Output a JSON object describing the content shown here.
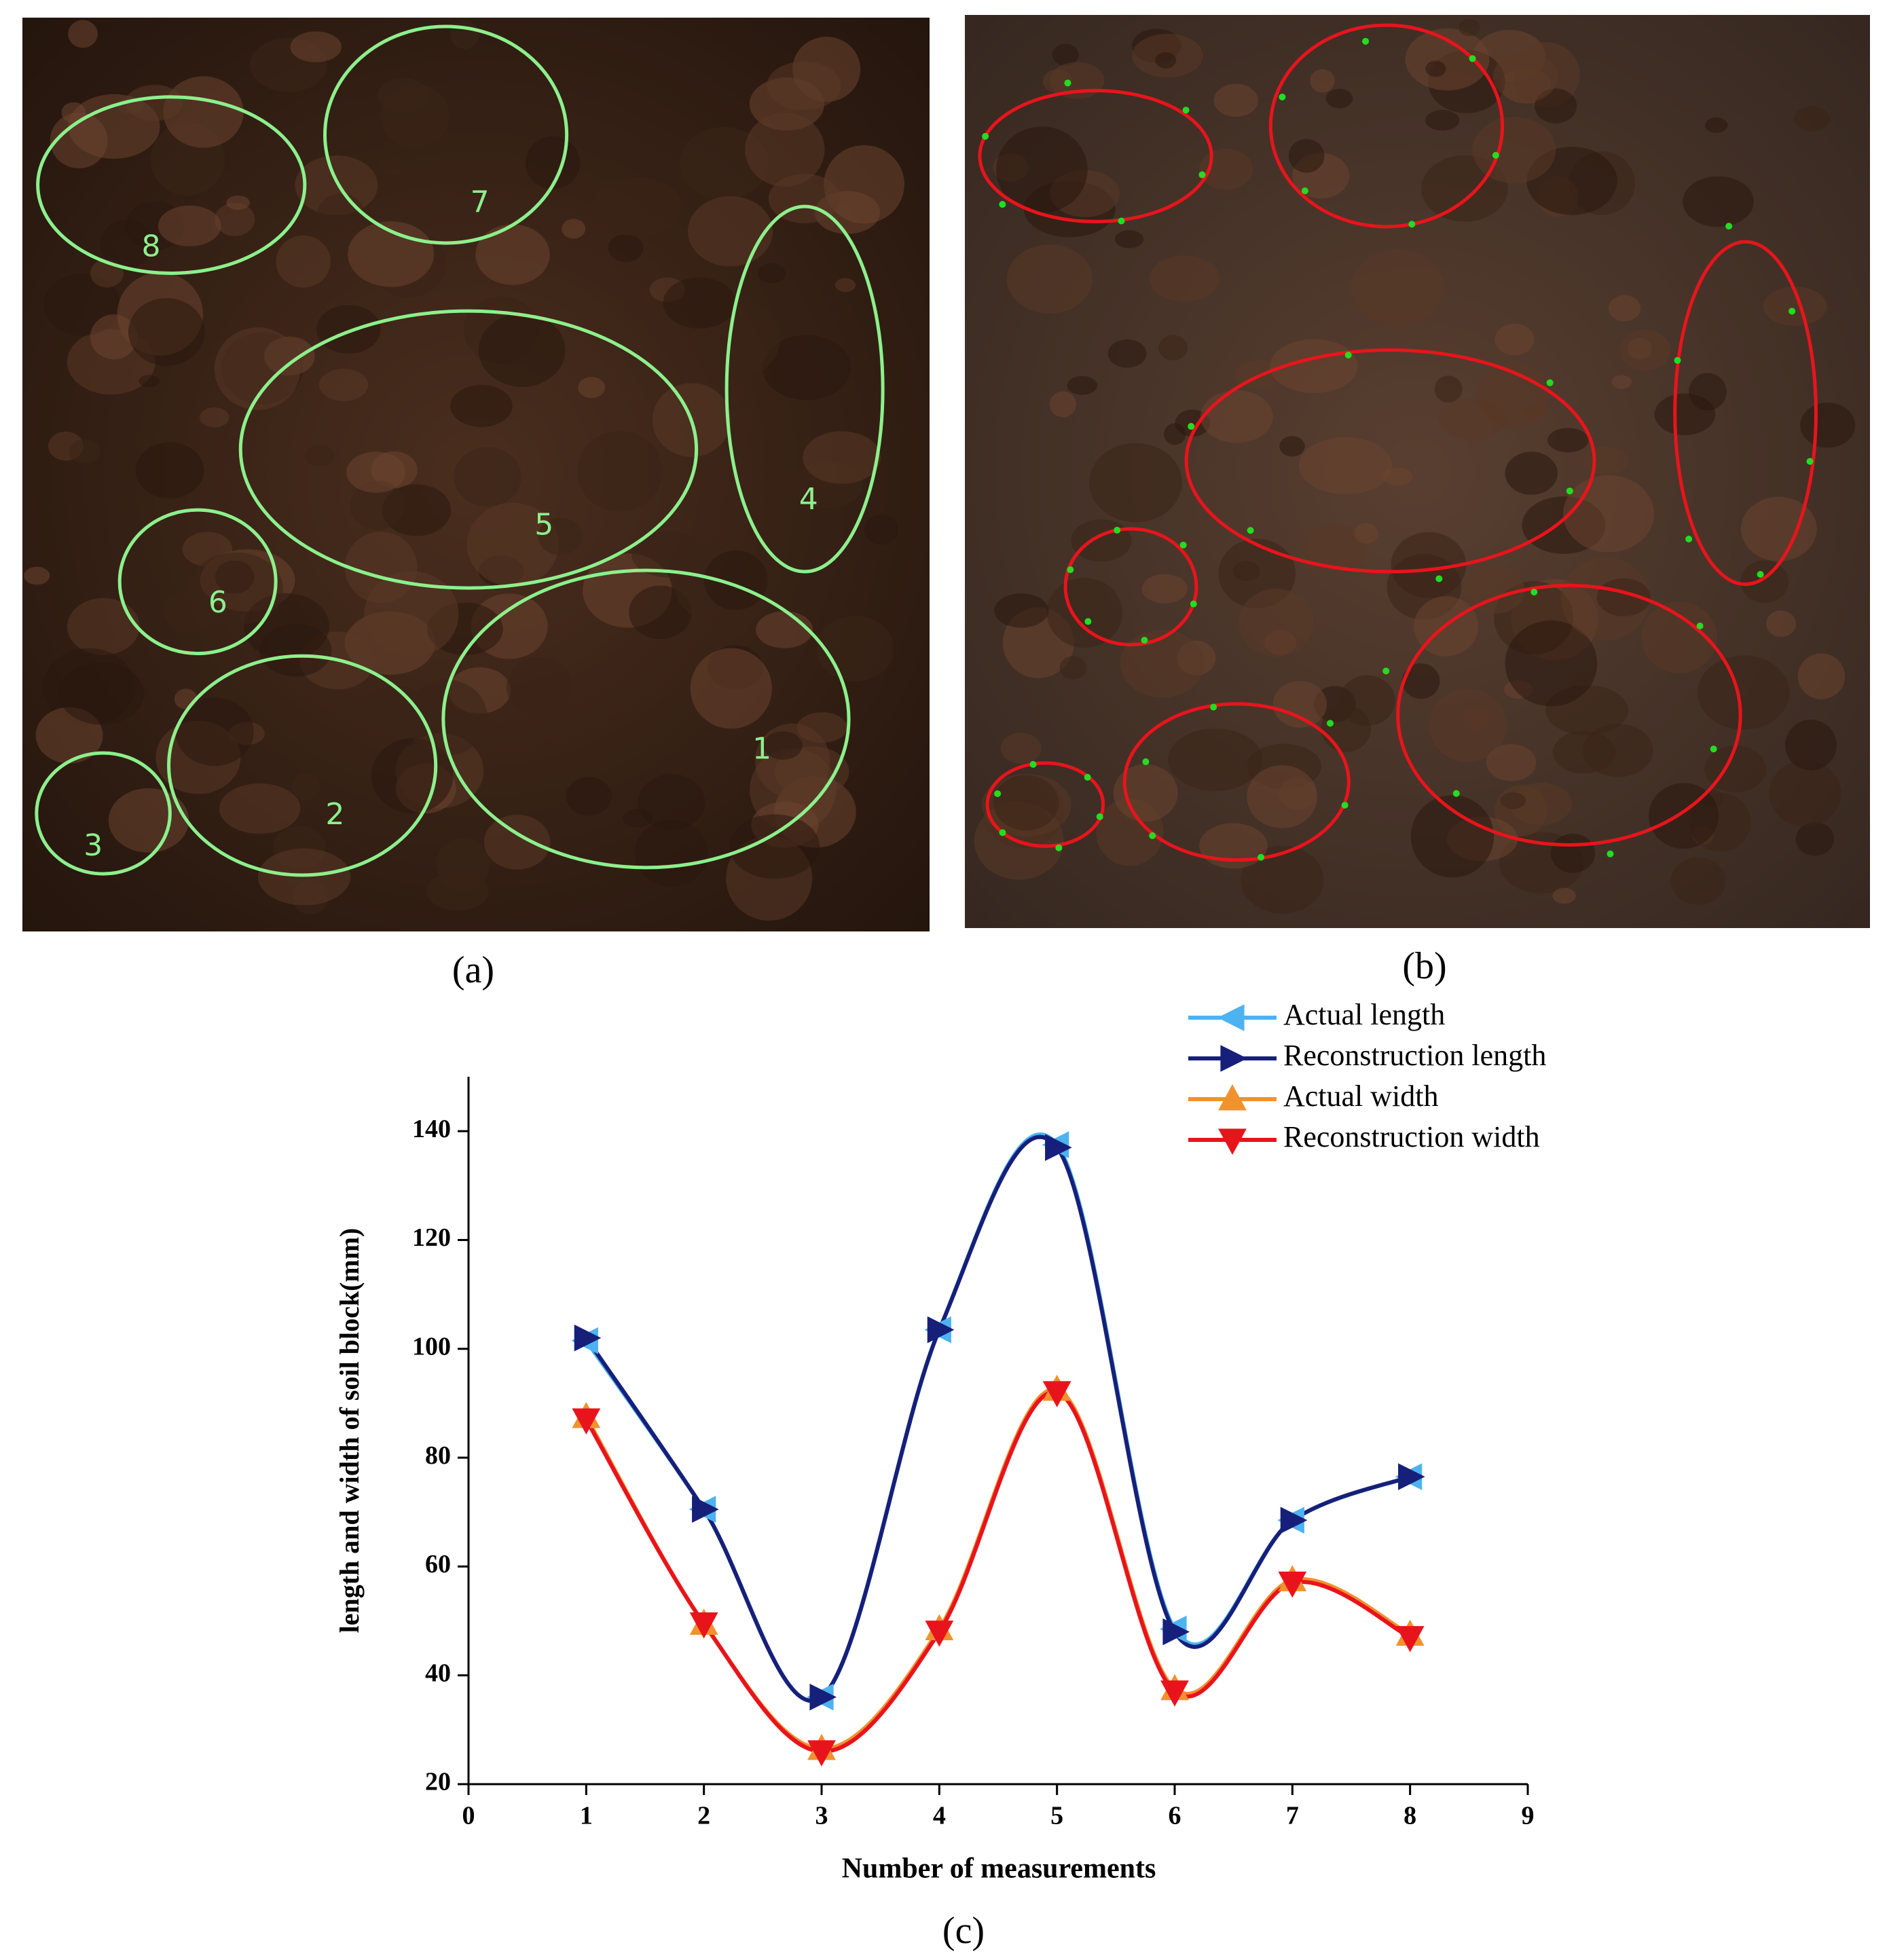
{
  "panels": {
    "a": {
      "label": "(a)",
      "ellipse_labels": [
        "1",
        "2",
        "3",
        "4",
        "5",
        "6",
        "7",
        "8"
      ]
    },
    "b": {
      "label": "(b)"
    },
    "c": {
      "label": "(c)"
    }
  },
  "chart_data": {
    "type": "line",
    "smooth": true,
    "x_label": "Number of measurements",
    "y_label": "length and width of soil block(mm)",
    "x": [
      1,
      2,
      3,
      4,
      5,
      6,
      7,
      8
    ],
    "series": [
      {
        "name": "Actual length",
        "color": "#4db3f0",
        "marker": "triangle-left",
        "values": [
          101.5,
          70.5,
          36,
          103.5,
          137.5,
          48.5,
          68.5,
          76.5
        ]
      },
      {
        "name": "Reconstruction length",
        "color": "#16207a",
        "marker": "triangle-right",
        "values": [
          102,
          70.5,
          36,
          103.5,
          137,
          48,
          68.5,
          76.5
        ]
      },
      {
        "name": "Actual width",
        "color": "#f0922e",
        "marker": "triangle-up",
        "values": [
          87.5,
          49.5,
          26.5,
          48.5,
          92.5,
          37.5,
          57.5,
          47.5
        ]
      },
      {
        "name": "Reconstruction width",
        "color": "#e8141c",
        "marker": "triangle-down",
        "values": [
          87,
          49.5,
          26,
          48,
          92,
          37,
          57,
          47
        ]
      }
    ],
    "xlim": [
      0,
      9
    ],
    "xticks": [
      0,
      1,
      2,
      3,
      4,
      5,
      6,
      7,
      8,
      9
    ],
    "ylim": [
      20,
      150
    ],
    "yticks": [
      20,
      40,
      60,
      80,
      100,
      120,
      140
    ],
    "grid": false,
    "legend": "upper right"
  }
}
